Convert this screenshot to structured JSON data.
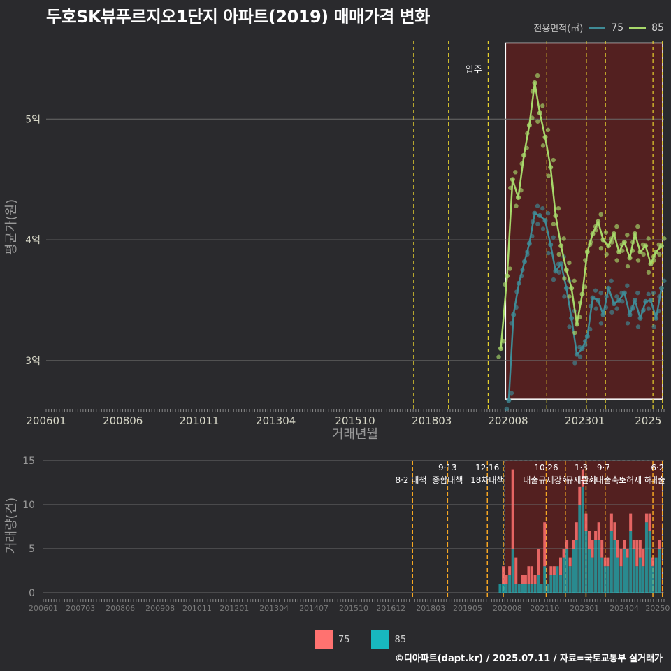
{
  "title": "두호SK뷰푸르지오1단지 아파트(2019) 매매가격 변화",
  "footer": "©디아파트(dapt.kr) / 2025.07.11 / 자료=국토교통부 실거래가",
  "colors": {
    "s75_line": "#3f8b96",
    "s85_line": "#a7d86a",
    "s75_bar": "#ff7270",
    "s85_bar": "#18b8bf",
    "highlight": "#5a1f1f",
    "policy_line": "#f5a623",
    "policy_line_top": "#e6d12e"
  },
  "chart_data": [
    {
      "type": "line",
      "title": "두호SK뷰푸르지오1단지 아파트(2019) 매매가격 변화",
      "xlabel": "거래년월",
      "ylabel": "평균가(원)",
      "ylim": [
        2.6,
        5.65
      ],
      "y_ticks": [
        {
          "value": 3,
          "label": "3억"
        },
        {
          "value": 4,
          "label": "4억"
        },
        {
          "value": 5,
          "label": "5억"
        }
      ],
      "x_range": [
        2006.0,
        2025.5
      ],
      "x_ticks": [
        {
          "value": 2006.0,
          "label": "200601"
        },
        {
          "value": 2008.42,
          "label": "200806"
        },
        {
          "value": 2010.83,
          "label": "201011"
        },
        {
          "value": 2013.25,
          "label": "201304"
        },
        {
          "value": 2015.75,
          "label": "201510"
        },
        {
          "value": 2018.17,
          "label": "201803"
        },
        {
          "value": 2020.58,
          "label": "202008"
        },
        {
          "value": 2023.0,
          "label": "202301"
        },
        {
          "value": 2025.0,
          "label": "2025"
        }
      ],
      "legend_title": "전용면적(㎡)",
      "move_in_label": "입주",
      "move_in_x": 2019.8,
      "highlight_range": [
        2020.5,
        2025.5
      ],
      "policy_lines": [
        2017.6,
        2018.7,
        2019.95,
        2021.8,
        2023.05,
        2023.65,
        2025.15,
        2025.45
      ],
      "series": [
        {
          "name": "75",
          "x": [
            2020.6,
            2020.75,
            2020.92,
            2021.1,
            2021.25,
            2021.42,
            2021.58,
            2021.75,
            2021.92,
            2022.08,
            2022.25,
            2022.42,
            2022.58,
            2022.75,
            2022.92,
            2023.08,
            2023.25,
            2023.42,
            2023.58,
            2023.75,
            2023.92,
            2024.08,
            2024.25,
            2024.42,
            2024.58,
            2024.75,
            2024.92,
            2025.08,
            2025.25,
            2025.42
          ],
          "values": [
            2.67,
            3.38,
            3.64,
            3.82,
            3.97,
            4.22,
            4.2,
            4.16,
            3.96,
            3.74,
            3.8,
            3.6,
            3.35,
            3.05,
            3.1,
            3.2,
            3.52,
            3.5,
            3.38,
            3.6,
            3.47,
            3.5,
            3.56,
            3.38,
            3.5,
            3.35,
            3.49,
            3.5,
            3.35,
            3.6
          ]
        },
        {
          "name": "85",
          "x": [
            2020.35,
            2020.55,
            2020.72,
            2020.9,
            2021.08,
            2021.25,
            2021.42,
            2021.58,
            2021.75,
            2021.92,
            2022.08,
            2022.25,
            2022.42,
            2022.58,
            2022.75,
            2022.92,
            2023.08,
            2023.25,
            2023.42,
            2023.58,
            2023.75,
            2023.92,
            2024.08,
            2024.25,
            2024.42,
            2024.58,
            2024.75,
            2024.92,
            2025.08,
            2025.25,
            2025.42
          ],
          "values": [
            3.1,
            3.7,
            4.5,
            4.35,
            4.7,
            4.95,
            5.3,
            5.05,
            4.85,
            4.6,
            4.2,
            3.95,
            3.75,
            3.6,
            3.3,
            3.55,
            3.9,
            4.05,
            4.15,
            4.0,
            3.95,
            4.05,
            3.9,
            3.98,
            3.85,
            4.05,
            3.9,
            3.95,
            3.8,
            3.9,
            3.95
          ]
        }
      ]
    },
    {
      "type": "bar",
      "ylabel": "거래량(건)",
      "ylim": [
        0,
        15
      ],
      "y_ticks": [
        0,
        5,
        10,
        15
      ],
      "x_range": [
        2006.0,
        2025.5
      ],
      "x_ticks": [
        {
          "value": 2006.0,
          "label": "200601"
        },
        {
          "value": 2007.17,
          "label": "200703"
        },
        {
          "value": 2008.42,
          "label": "200806"
        },
        {
          "value": 2009.67,
          "label": "200908"
        },
        {
          "value": 2010.83,
          "label": "201011"
        },
        {
          "value": 2012.0,
          "label": "201201"
        },
        {
          "value": 2013.25,
          "label": "201304"
        },
        {
          "value": 2014.5,
          "label": "201407"
        },
        {
          "value": 2015.75,
          "label": "201510"
        },
        {
          "value": 2016.92,
          "label": "201612"
        },
        {
          "value": 2018.17,
          "label": "201803"
        },
        {
          "value": 2019.33,
          "label": "201905"
        },
        {
          "value": 2020.58,
          "label": "202008"
        },
        {
          "value": 2021.75,
          "label": "202110"
        },
        {
          "value": 2023.0,
          "label": "202301"
        },
        {
          "value": 2024.25,
          "label": "202404"
        },
        {
          "value": 2025.3,
          "label": "20250"
        }
      ],
      "highlight_range": [
        2020.5,
        2025.45
      ],
      "policy_lines": [
        2017.6,
        2018.7,
        2019.95,
        2020.45,
        2021.8,
        2022.4,
        2023.05,
        2023.65,
        2025.15,
        2025.45
      ],
      "annotations": [
        {
          "x": 2017.55,
          "line1": "",
          "line2": "8·2 대책"
        },
        {
          "x": 2018.7,
          "line1": "9·13",
          "line2": "종합대책"
        },
        {
          "x": 2019.95,
          "line1": "12·16",
          "line2": "18차대책"
        },
        {
          "x": 2021.8,
          "line1": "10·26",
          "line2": "대출규제강화"
        },
        {
          "x": 2022.9,
          "line1": "1·3",
          "line2": "규제완화"
        },
        {
          "x": 2023.6,
          "line1": "9·7",
          "line2": "특례대출축소"
        },
        {
          "x": 2024.6,
          "line1": "",
          "line2": "토허제 해"
        },
        {
          "x": 2025.3,
          "line1": "6·2",
          "line2": "대출"
        }
      ],
      "series": [
        {
          "name": "75"
        },
        {
          "name": "85"
        }
      ],
      "x": [
        2020.35,
        2020.45,
        2020.55,
        2020.65,
        2020.75,
        2020.85,
        2020.95,
        2021.05,
        2021.15,
        2021.25,
        2021.35,
        2021.45,
        2021.55,
        2021.65,
        2021.75,
        2021.85,
        2021.95,
        2022.05,
        2022.15,
        2022.25,
        2022.35,
        2022.45,
        2022.55,
        2022.65,
        2022.75,
        2022.85,
        2022.95,
        2023.05,
        2023.15,
        2023.25,
        2023.35,
        2023.45,
        2023.55,
        2023.65,
        2023.75,
        2023.85,
        2023.95,
        2024.05,
        2024.15,
        2024.25,
        2024.35,
        2024.45,
        2024.55,
        2024.65,
        2024.75,
        2024.85,
        2024.95,
        2025.05,
        2025.15,
        2025.25,
        2025.35
      ],
      "stack_85": [
        1,
        1,
        1,
        2,
        5,
        1,
        1,
        1,
        1,
        1,
        1,
        1,
        2,
        1,
        3,
        1,
        2,
        2,
        3,
        2,
        4,
        5,
        3,
        5,
        6,
        10,
        12,
        7,
        5,
        4,
        6,
        6,
        4,
        3,
        3,
        7,
        6,
        4,
        3,
        5,
        4,
        7,
        5,
        3,
        4,
        3,
        8,
        7,
        3,
        4,
        5
      ],
      "stack_75": [
        0,
        2,
        1,
        1,
        9,
        3,
        0,
        1,
        1,
        2,
        2,
        1,
        3,
        0,
        5,
        0,
        1,
        1,
        0,
        2,
        1,
        1,
        1,
        1,
        2,
        2,
        2,
        2,
        2,
        2,
        1,
        2,
        2,
        1,
        1,
        2,
        2,
        2,
        2,
        1,
        1,
        2,
        1,
        3,
        2,
        2,
        1,
        2,
        1,
        0,
        1
      ]
    }
  ],
  "legend_bottom": [
    "75",
    "85"
  ]
}
